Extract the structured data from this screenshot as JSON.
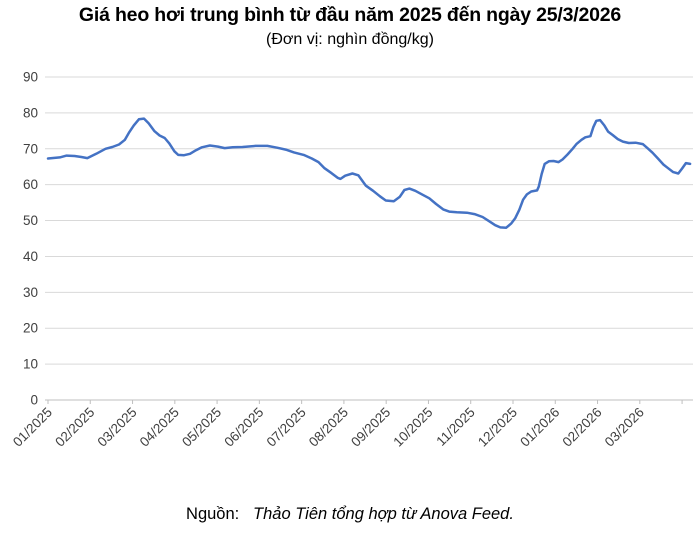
{
  "header": {
    "title": "Giá heo hơi trung bình từ đầu năm 2025 đến ngày 25/3/2026",
    "subtitle": "(Đơn vị: nghìn đồng/kg)"
  },
  "footer": {
    "label": "Nguồn:",
    "text": "Thảo Tiên tổng hợp từ Anova Feed."
  },
  "chart_data": {
    "type": "line",
    "title": "Giá heo hơi trung bình từ đầu năm 2025 đến ngày 25/3/2026",
    "subtitle": "(Đơn vị: nghìn đồng/kg)",
    "unit": "nghìn đồng/kg",
    "source": "Nguồn: Thảo Tiên tổng hợp từ Anova Feed.",
    "grid": "horizontal",
    "legend": "none",
    "line_color": "#4472C4",
    "grid_color": "#d9d9d9",
    "axis_color": "#bfbfbf",
    "label_color": "#404040",
    "ylim": [
      0,
      90
    ],
    "y_ticks": [
      0,
      10,
      20,
      30,
      40,
      50,
      60,
      70,
      80,
      90
    ],
    "x_domain_months": [
      0,
      15.2
    ],
    "x_tick_labels": [
      "01/2025",
      "02/2025",
      "03/2025",
      "04/2025",
      "05/2025",
      "06/2025",
      "07/2025",
      "08/2025",
      "09/2025",
      "10/2025",
      "11/2025",
      "12/2025",
      "01/2026",
      "02/2026",
      "03/2026"
    ],
    "series": [
      {
        "name": "Giá heo hơi trung bình (nghìn đồng/kg)",
        "points": [
          [
            0,
            67.3
          ],
          [
            0.28,
            67.6
          ],
          [
            0.44,
            68.1
          ],
          [
            0.63,
            68.0
          ],
          [
            0.79,
            67.7
          ],
          [
            0.93,
            67.4
          ],
          [
            1.14,
            68.6
          ],
          [
            1.36,
            70.0
          ],
          [
            1.52,
            70.5
          ],
          [
            1.68,
            71.2
          ],
          [
            1.82,
            72.5
          ],
          [
            1.92,
            74.6
          ],
          [
            2.03,
            76.5
          ],
          [
            2.15,
            78.2
          ],
          [
            2.27,
            78.4
          ],
          [
            2.38,
            77.1
          ],
          [
            2.52,
            74.9
          ],
          [
            2.64,
            73.7
          ],
          [
            2.76,
            73.0
          ],
          [
            2.87,
            71.5
          ],
          [
            2.99,
            69.3
          ],
          [
            3.08,
            68.3
          ],
          [
            3.22,
            68.2
          ],
          [
            3.36,
            68.6
          ],
          [
            3.5,
            69.6
          ],
          [
            3.64,
            70.4
          ],
          [
            3.83,
            70.9
          ],
          [
            4.02,
            70.6
          ],
          [
            4.18,
            70.2
          ],
          [
            4.37,
            70.4
          ],
          [
            4.6,
            70.5
          ],
          [
            4.91,
            70.8
          ],
          [
            5.19,
            70.8
          ],
          [
            5.42,
            70.3
          ],
          [
            5.65,
            69.7
          ],
          [
            5.82,
            69.0
          ],
          [
            6.05,
            68.3
          ],
          [
            6.24,
            67.3
          ],
          [
            6.4,
            66.3
          ],
          [
            6.54,
            64.6
          ],
          [
            6.71,
            63.2
          ],
          [
            6.85,
            61.9
          ],
          [
            6.92,
            61.6
          ],
          [
            7.03,
            62.5
          ],
          [
            7.2,
            63.1
          ],
          [
            7.34,
            62.6
          ],
          [
            7.52,
            59.7
          ],
          [
            7.69,
            58.3
          ],
          [
            7.85,
            56.8
          ],
          [
            7.99,
            55.6
          ],
          [
            8.18,
            55.4
          ],
          [
            8.32,
            56.6
          ],
          [
            8.43,
            58.5
          ],
          [
            8.55,
            58.9
          ],
          [
            8.69,
            58.3
          ],
          [
            8.86,
            57.2
          ],
          [
            9.02,
            56.2
          ],
          [
            9.18,
            54.6
          ],
          [
            9.35,
            53.1
          ],
          [
            9.49,
            52.5
          ],
          [
            9.67,
            52.3
          ],
          [
            9.91,
            52.2
          ],
          [
            10.09,
            51.8
          ],
          [
            10.28,
            51.0
          ],
          [
            10.44,
            49.8
          ],
          [
            10.58,
            48.7
          ],
          [
            10.7,
            48.1
          ],
          [
            10.84,
            48.0
          ],
          [
            10.96,
            49.2
          ],
          [
            11.05,
            50.6
          ],
          [
            11.15,
            53.0
          ],
          [
            11.24,
            55.8
          ],
          [
            11.33,
            57.3
          ],
          [
            11.43,
            58.1
          ],
          [
            11.57,
            58.4
          ],
          [
            11.61,
            59.5
          ],
          [
            11.68,
            63.0
          ],
          [
            11.75,
            65.8
          ],
          [
            11.85,
            66.5
          ],
          [
            11.96,
            66.6
          ],
          [
            12.08,
            66.3
          ],
          [
            12.17,
            67.0
          ],
          [
            12.29,
            68.4
          ],
          [
            12.41,
            70.0
          ],
          [
            12.5,
            71.3
          ],
          [
            12.62,
            72.5
          ],
          [
            12.71,
            73.2
          ],
          [
            12.83,
            73.5
          ],
          [
            12.9,
            76.0
          ],
          [
            12.97,
            77.8
          ],
          [
            13.06,
            78.0
          ],
          [
            13.16,
            76.5
          ],
          [
            13.25,
            74.8
          ],
          [
            13.36,
            73.8
          ],
          [
            13.48,
            72.7
          ],
          [
            13.6,
            72.0
          ],
          [
            13.74,
            71.6
          ],
          [
            13.9,
            71.7
          ],
          [
            14.07,
            71.3
          ],
          [
            14.18,
            70.2
          ],
          [
            14.3,
            68.9
          ],
          [
            14.42,
            67.4
          ],
          [
            14.56,
            65.6
          ],
          [
            14.67,
            64.6
          ],
          [
            14.79,
            63.5
          ],
          [
            14.91,
            63.1
          ],
          [
            15.0,
            64.5
          ],
          [
            15.09,
            66.0
          ],
          [
            15.19,
            65.8
          ]
        ]
      }
    ]
  }
}
